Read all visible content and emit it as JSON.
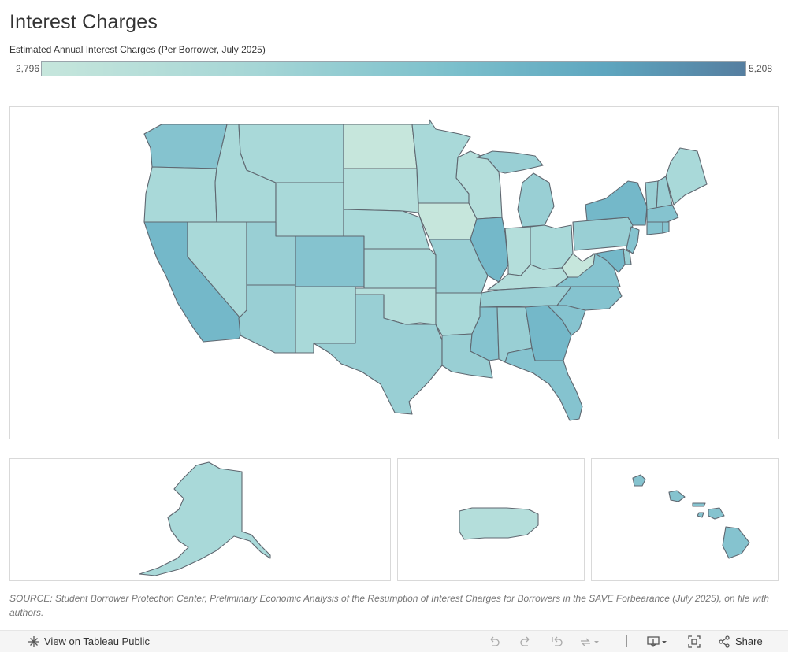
{
  "header": {
    "title": "Interest Charges",
    "legend_title": "Estimated Annual Interest Charges (Per Borrower, July 2025)",
    "legend_min": "2,796",
    "legend_max": "5,208"
  },
  "colors": {
    "lightest": "#c6e6dc",
    "lighter": "#b4dedb",
    "light": "#a9d9d9",
    "medium": "#99cfd4",
    "mid_dark": "#85c3cf",
    "dark": "#74b8c9",
    "outline": "#5f6770"
  },
  "map": {
    "legend_min_value": 2796,
    "legend_max_value": 5208,
    "states": [
      {
        "abbr": "WA",
        "shade": "mid_dark"
      },
      {
        "abbr": "OR",
        "shade": "light"
      },
      {
        "abbr": "CA",
        "shade": "dark"
      },
      {
        "abbr": "ID",
        "shade": "light"
      },
      {
        "abbr": "NV",
        "shade": "light"
      },
      {
        "abbr": "MT",
        "shade": "light"
      },
      {
        "abbr": "WY",
        "shade": "light"
      },
      {
        "abbr": "UT",
        "shade": "medium"
      },
      {
        "abbr": "AZ",
        "shade": "medium"
      },
      {
        "abbr": "CO",
        "shade": "mid_dark"
      },
      {
        "abbr": "NM",
        "shade": "light"
      },
      {
        "abbr": "ND",
        "shade": "lightest"
      },
      {
        "abbr": "SD",
        "shade": "lighter"
      },
      {
        "abbr": "NE",
        "shade": "light"
      },
      {
        "abbr": "KS",
        "shade": "light"
      },
      {
        "abbr": "OK",
        "shade": "lighter"
      },
      {
        "abbr": "TX",
        "shade": "medium"
      },
      {
        "abbr": "MN",
        "shade": "light"
      },
      {
        "abbr": "IA",
        "shade": "lightest"
      },
      {
        "abbr": "MO",
        "shade": "medium"
      },
      {
        "abbr": "AR",
        "shade": "light"
      },
      {
        "abbr": "LA",
        "shade": "medium"
      },
      {
        "abbr": "WI",
        "shade": "lighter"
      },
      {
        "abbr": "IL",
        "shade": "dark"
      },
      {
        "abbr": "MI",
        "shade": "medium"
      },
      {
        "abbr": "IN",
        "shade": "lighter"
      },
      {
        "abbr": "OH",
        "shade": "light"
      },
      {
        "abbr": "KY",
        "shade": "lighter"
      },
      {
        "abbr": "TN",
        "shade": "medium"
      },
      {
        "abbr": "MS",
        "shade": "mid_dark"
      },
      {
        "abbr": "AL",
        "shade": "medium"
      },
      {
        "abbr": "GA",
        "shade": "dark"
      },
      {
        "abbr": "FL",
        "shade": "mid_dark"
      },
      {
        "abbr": "SC",
        "shade": "mid_dark"
      },
      {
        "abbr": "NC",
        "shade": "mid_dark"
      },
      {
        "abbr": "VA",
        "shade": "mid_dark"
      },
      {
        "abbr": "WV",
        "shade": "lightest"
      },
      {
        "abbr": "PA",
        "shade": "medium"
      },
      {
        "abbr": "NY",
        "shade": "dark"
      },
      {
        "abbr": "NJ",
        "shade": "mid_dark"
      },
      {
        "abbr": "DE",
        "shade": "medium"
      },
      {
        "abbr": "MD",
        "shade": "dark"
      },
      {
        "abbr": "VT",
        "shade": "medium"
      },
      {
        "abbr": "NH",
        "shade": "medium"
      },
      {
        "abbr": "ME",
        "shade": "light"
      },
      {
        "abbr": "MA",
        "shade": "mid_dark"
      },
      {
        "abbr": "CT",
        "shade": "mid_dark"
      },
      {
        "abbr": "RI",
        "shade": "mid_dark"
      },
      {
        "abbr": "AK",
        "shade": "light"
      },
      {
        "abbr": "PR",
        "shade": "lighter"
      },
      {
        "abbr": "HI",
        "shade": "mid_dark"
      }
    ]
  },
  "footer": {
    "source": "SOURCE: Student Borrower Protection Center, Preliminary Economic Analysis of the Resumption of Interest Charges for Borrowers in the SAVE Forbearance (July 2025), on file with authors."
  },
  "toolbar": {
    "view_label": "View on Tableau Public",
    "share_label": "Share"
  }
}
